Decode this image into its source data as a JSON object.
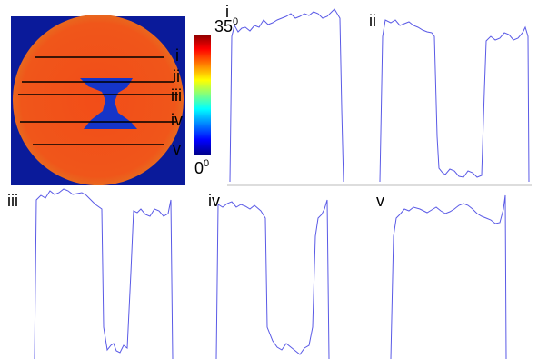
{
  "colorbar": {
    "max": "35",
    "max_unit": "0",
    "min": "0",
    "min_unit": "0"
  },
  "lines": [
    "i",
    "ii",
    "iii",
    "iv",
    "v"
  ],
  "panels": [
    {
      "label": "i"
    },
    {
      "label": "ii"
    },
    {
      "label": "iii"
    },
    {
      "label": "iv"
    },
    {
      "label": "v"
    }
  ]
}
